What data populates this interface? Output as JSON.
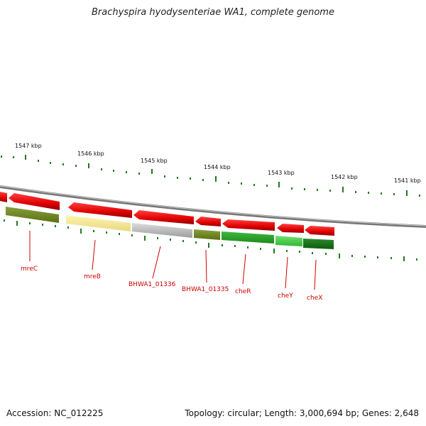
{
  "title": "Brachyspira hyodysenteriae WA1, complete genome",
  "footer": {
    "accession": "Accession: NC_012225",
    "summary": "Topology: circular; Length: 3,000,694 bp; Genes: 2,648"
  },
  "scale_labels": [
    "1547 kbp",
    "1546 kbp",
    "1545 kbp",
    "1544 kbp",
    "1543 kbp",
    "1542 kbp",
    "1541 kbp"
  ],
  "gene_labels": [
    "mreC",
    "mreB",
    "BHWA1_01336",
    "BHWA1_01335",
    "cheR",
    "cheY",
    "cheX"
  ],
  "colors": {
    "cds_strand": "#e00000",
    "tick": "#1f7a1f",
    "label": "#cc0000",
    "backbone": "#888888"
  }
}
